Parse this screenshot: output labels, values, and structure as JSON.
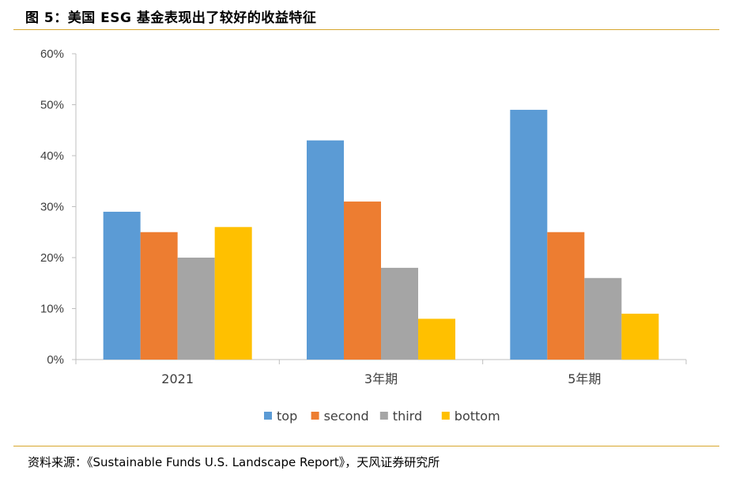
{
  "figure": {
    "title": "图 5：美国  ESG 基金表现出了较好的收益特征",
    "source": "资料来源：《Sustainable Funds U.S. Landscape Report》，天风证券研究所",
    "accent_color": "#d7a62e"
  },
  "chart_data": {
    "type": "bar",
    "categories": [
      "2021",
      "3年期",
      "5年期"
    ],
    "series": [
      {
        "name": "top",
        "color": "#5b9bd5",
        "values": [
          29,
          43,
          49
        ]
      },
      {
        "name": "second",
        "color": "#ed7d31",
        "values": [
          25,
          31,
          25
        ]
      },
      {
        "name": "third",
        "color": "#a5a5a5",
        "values": [
          20,
          18,
          16
        ]
      },
      {
        "name": "bottom",
        "color": "#ffc000",
        "values": [
          26,
          8,
          9
        ]
      }
    ],
    "ylim": [
      0,
      60
    ],
    "yticks": [
      "0%",
      "10%",
      "20%",
      "30%",
      "40%",
      "50%",
      "60%"
    ],
    "grid": false,
    "legend": "bottom"
  }
}
